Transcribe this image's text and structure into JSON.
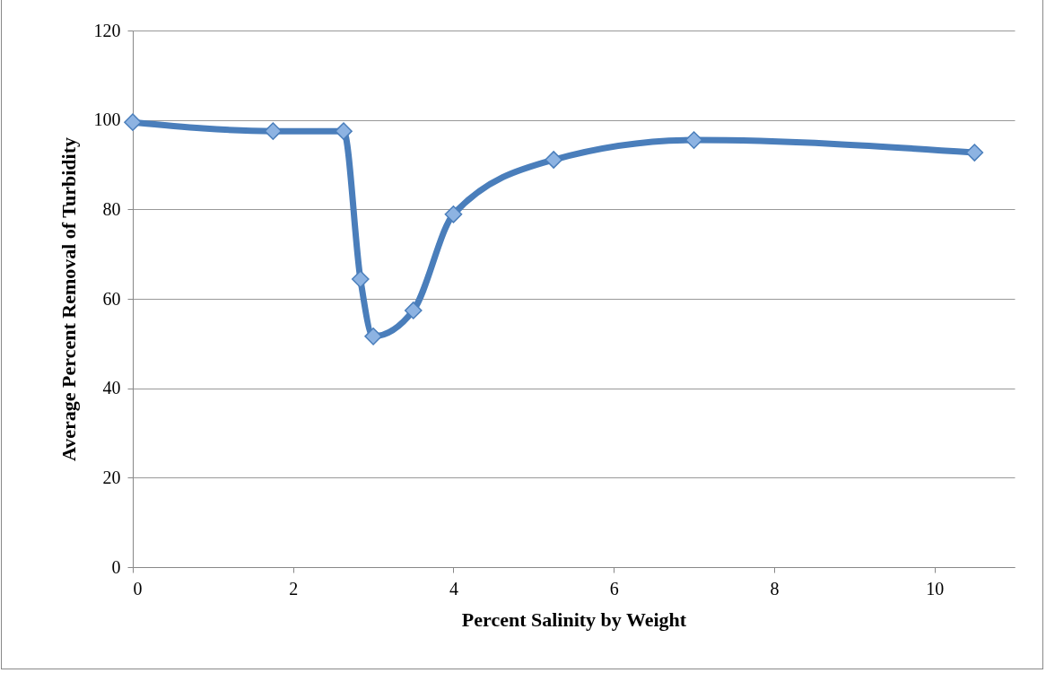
{
  "chart_data": {
    "type": "line",
    "xlabel": "Percent Salinity by Weight",
    "ylabel": "Average Percent Removal of Turbidity",
    "x": [
      0,
      1.75,
      2.63,
      2.84,
      3,
      3.5,
      4,
      5.25,
      7,
      10.5
    ],
    "series": [
      {
        "color": "#4a7ebb",
        "values": [
          99.5,
          97.5,
          97.5,
          64.4,
          51.6,
          57.4,
          78.9,
          91.1,
          95.5,
          92.7
        ]
      }
    ],
    "xlim": [
      0,
      11
    ],
    "xticks": [
      0,
      2,
      4,
      6,
      8,
      10
    ],
    "ylim": [
      0,
      120
    ],
    "yticks": [
      0,
      20,
      40,
      60,
      80,
      100,
      120
    ],
    "grid": "y",
    "marker": "diamond",
    "line_style": "solid"
  }
}
